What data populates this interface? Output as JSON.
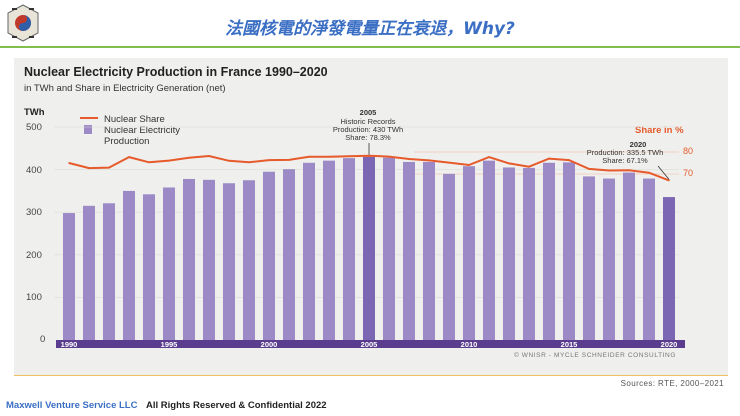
{
  "slide": {
    "title": "法國核電的淨發電量正在衰退，Why?",
    "company": "Maxwell Venture Service LLC",
    "rights": "All Rights Reserved & Confidential 2022",
    "sources": "Sources: RTE, 2000–2021"
  },
  "colors": {
    "bar": "#9b8ac6",
    "bar_highlight": "#7a66b3",
    "line": "#e65a2b",
    "axis_bar": "#5a3d8f",
    "title": "#3b6fc4",
    "rule": "#7fbf4d"
  },
  "chart_data": {
    "type": "bar",
    "title": "Nuclear Electricity Production in France 1990–2020",
    "subtitle": "in TWh and Share in Electricity Generation (net)",
    "ylabel": "TWh",
    "y2label": "Share in %",
    "ylim": [
      0,
      500
    ],
    "y2_ticks": [
      "80",
      "70"
    ],
    "y_ticks": [
      "0",
      "100",
      "200",
      "300",
      "400",
      "500"
    ],
    "x_tick_labels": [
      "1990",
      "1995",
      "2000",
      "2005",
      "2010",
      "2015",
      "2020"
    ],
    "legend": {
      "line_label": "Nuclear Share",
      "bar_label_1": "Nuclear Electricity",
      "bar_label_2": "Production"
    },
    "annotation_2005": {
      "year": "2005",
      "line1": "Historic Records",
      "line2": "Production: 430 TWh",
      "line3": "Share: 78.3%"
    },
    "annotation_2020": {
      "year": "2020",
      "line1": "Production: 335.5 TWh",
      "line2": "Share: 67.1%"
    },
    "copyright": "© WNISR - MYCLE SCHNEIDER CONSULTING",
    "categories": [
      1990,
      1991,
      1992,
      1993,
      1994,
      1995,
      1996,
      1997,
      1998,
      1999,
      2000,
      2001,
      2002,
      2003,
      2004,
      2005,
      2006,
      2007,
      2008,
      2009,
      2010,
      2011,
      2012,
      2013,
      2014,
      2015,
      2016,
      2017,
      2018,
      2019,
      2020
    ],
    "series": [
      {
        "name": "Nuclear Electricity Production",
        "values": [
          298,
          315,
          321,
          350,
          342,
          358,
          378,
          376,
          368,
          375,
          395,
          401,
          416,
          421,
          427,
          430,
          428,
          418,
          418,
          390,
          408,
          421,
          405,
          404,
          416,
          417,
          384,
          379,
          393,
          379,
          335.5
        ]
      },
      {
        "name": "Nuclear Share",
        "values": [
          75.0,
          72.7,
          72.9,
          77.7,
          75.3,
          76.1,
          77.4,
          78.2,
          76.0,
          75.3,
          76.3,
          76.4,
          77.8,
          77.8,
          78.1,
          78.3,
          77.9,
          76.8,
          76.2,
          75.2,
          74.1,
          77.7,
          74.8,
          73.3,
          77.0,
          76.3,
          72.3,
          71.6,
          71.7,
          70.6,
          67.1
        ]
      }
    ]
  }
}
